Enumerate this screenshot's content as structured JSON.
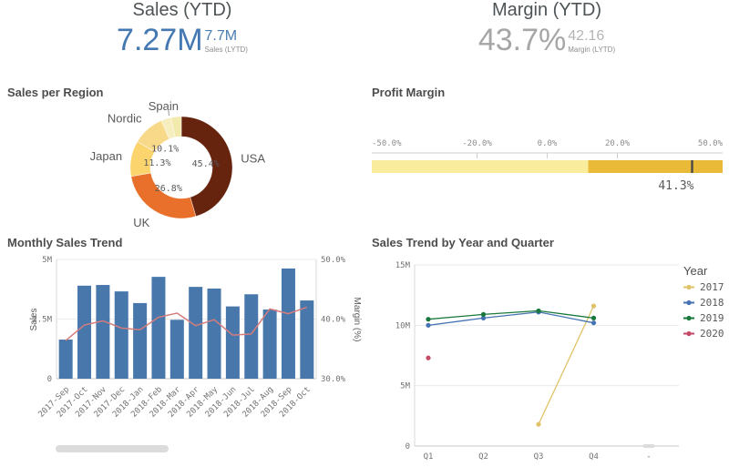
{
  "kpi_sales": {
    "title": "Sales (YTD)",
    "value": "7.27M",
    "secondary_value": "7.7M",
    "secondary_label": "Sales (LYTD)",
    "value_color": "#4478b2",
    "secondary_color": "#4a7cb2"
  },
  "kpi_margin": {
    "title": "Margin (YTD)",
    "value": "43.7%",
    "secondary_value": "42.16",
    "secondary_label": "Margin (LYTD)",
    "value_color": "#a6a6a6",
    "secondary_color": "#b5b5b5"
  },
  "chart_data": [
    {
      "id": "sales-per-region",
      "type": "pie",
      "donut": true,
      "title": "Sales per Region",
      "slices": [
        {
          "label": "USA",
          "pct": 45.4,
          "pct_label": "45.4%",
          "color": "#66230e"
        },
        {
          "label": "UK",
          "pct": 26.8,
          "pct_label": "26.8%",
          "color": "#e8702a"
        },
        {
          "label": "Japan",
          "pct": 11.3,
          "pct_label": "11.3%",
          "color": "#fbd46e"
        },
        {
          "label": "Nordic",
          "pct": 10.1,
          "pct_label": "10.1%",
          "color": "#f8d98a"
        },
        {
          "label": "Spain",
          "pct": 3.2,
          "pct_label": "",
          "color": "#f6eebe",
          "leader": true
        },
        {
          "label": "",
          "pct": 3.2,
          "pct_label": "",
          "color": "#f2e9ac"
        }
      ]
    },
    {
      "id": "profit-margin",
      "type": "gauge",
      "title": "Profit Margin",
      "min": -50,
      "max": 50,
      "ticks": [
        {
          "value": -50,
          "label": "-50.0%"
        },
        {
          "value": -20,
          "label": "-20.0%"
        },
        {
          "value": 0,
          "label": "0.0%"
        },
        {
          "value": 20,
          "label": "20.0%"
        },
        {
          "value": 50,
          "label": "50.0%"
        }
      ],
      "segments": [
        {
          "from": -50,
          "to": 11.7,
          "color": "#f9ec9c"
        },
        {
          "from": 11.7,
          "to": 50,
          "color": "#e8ba37"
        }
      ],
      "value": 41.3,
      "value_label": "41.3%",
      "marker_color": "#4a4a4a"
    },
    {
      "id": "monthly-sales-trend",
      "type": "bar",
      "title": "Monthly Sales Trend",
      "categories": [
        "2017-Sep",
        "2017-Oct",
        "2017-Nov",
        "2017-Dec",
        "2018-Jan",
        "2018-Feb",
        "2018-Mar",
        "2018-Apr",
        "2018-May",
        "2018-Jun",
        "2018-Jul",
        "2018-Aug",
        "2018-Sep",
        "2018-Oct"
      ],
      "series": [
        {
          "name": "Sales",
          "chart": "bar",
          "axis": "left",
          "color": "#4878ab",
          "values": [
            1.64,
            3.9,
            3.93,
            3.66,
            3.17,
            4.27,
            2.47,
            3.85,
            3.78,
            3.03,
            3.54,
            2.9,
            4.62,
            3.28
          ]
        },
        {
          "name": "Margin (%)",
          "chart": "line",
          "axis": "right",
          "color": "#d47c7c",
          "values": [
            36.4,
            39.0,
            39.7,
            38.5,
            38.2,
            40.3,
            41.0,
            38.9,
            39.9,
            37.3,
            37.5,
            41.7,
            40.9,
            42.0
          ]
        }
      ],
      "left_axis": {
        "title": "Sales",
        "range": [
          0,
          5
        ],
        "ticks": [
          {
            "value": 0,
            "label": "0"
          },
          {
            "value": 2.5,
            "label": "2.5M"
          },
          {
            "value": 5,
            "label": "5M"
          }
        ]
      },
      "right_axis": {
        "title": "Margin (%)",
        "range": [
          30,
          50
        ],
        "ticks": [
          {
            "value": 30,
            "label": "30.0%"
          },
          {
            "value": 40,
            "label": "40.0%"
          },
          {
            "value": 50,
            "label": "50.0%"
          }
        ]
      }
    },
    {
      "id": "sales-trend-by-year-and-quarter",
      "type": "line",
      "title": "Sales Trend by Year and Quarter",
      "categories": [
        "Q1",
        "Q2",
        "Q3",
        "Q4",
        "-"
      ],
      "y_axis": {
        "range": [
          0,
          15
        ],
        "ticks": [
          {
            "value": 0,
            "label": "0"
          },
          {
            "value": 5,
            "label": "5M"
          },
          {
            "value": 10,
            "label": "10M"
          },
          {
            "value": 15,
            "label": "15M"
          }
        ]
      },
      "legend_title": "Year",
      "series": [
        {
          "name": "2017",
          "color": "#e0c268",
          "values": [
            null,
            null,
            1.8,
            11.6,
            null
          ]
        },
        {
          "name": "2018",
          "color": "#4472b2",
          "values": [
            10.0,
            10.6,
            11.1,
            10.2,
            null
          ]
        },
        {
          "name": "2019",
          "color": "#19793c",
          "values": [
            10.5,
            10.9,
            11.2,
            10.6,
            null
          ]
        },
        {
          "name": "2020",
          "color": "#c64a66",
          "values": [
            7.3,
            null,
            null,
            null,
            null
          ]
        }
      ],
      "null_marker": {
        "category": "-",
        "value": 0
      }
    }
  ]
}
